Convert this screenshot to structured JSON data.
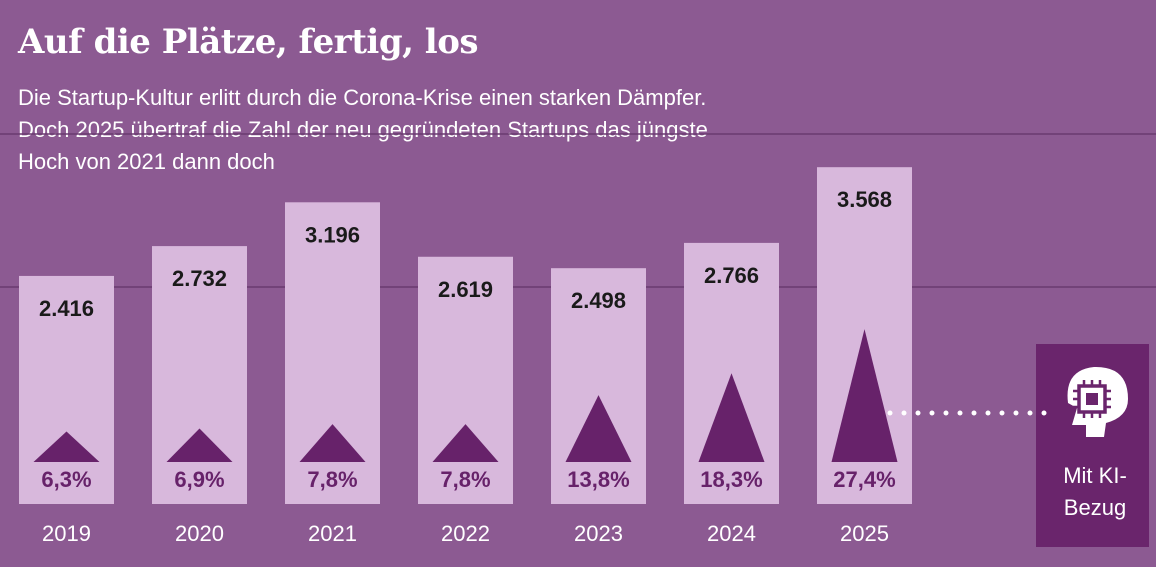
{
  "title": "Auf die Plätze, fertig, los",
  "subtitle": "Die Startup-Kultur erlitt durch die Corona-Krise einen starken Dämpfer. Doch 2025 übertraf die Zahl der neu gegründeten Startups das jüngste Hoch von 2021 dann doch",
  "colors": {
    "background": "#8c5a92",
    "bar": "#d8b8dc",
    "triangle": "#67226a",
    "gridline": "#6a3a70",
    "ai_box": "#6a256c"
  },
  "ai_box": {
    "icon": "head-chip-icon",
    "label_line1": "Mit KI-",
    "label_line2": "Bezug"
  },
  "chart_data": {
    "type": "bar",
    "categories": [
      "2019",
      "2020",
      "2021",
      "2022",
      "2023",
      "2024",
      "2025"
    ],
    "series": [
      {
        "values": [
          2416,
          2732,
          3196,
          2619,
          2498,
          2766,
          3568
        ],
        "labels": [
          "2.416",
          "2.732",
          "3.196",
          "2.619",
          "2.498",
          "2.766",
          "3.568"
        ]
      },
      {
        "name": "Mit KI-Bezug",
        "values": [
          6.3,
          6.9,
          7.8,
          7.8,
          13.8,
          18.3,
          27.4
        ],
        "labels": [
          "6,3%",
          "6,9%",
          "7,8%",
          "7,8%",
          "13,8%",
          "18,3%",
          "27,4%"
        ],
        "unit": "%"
      }
    ]
  }
}
